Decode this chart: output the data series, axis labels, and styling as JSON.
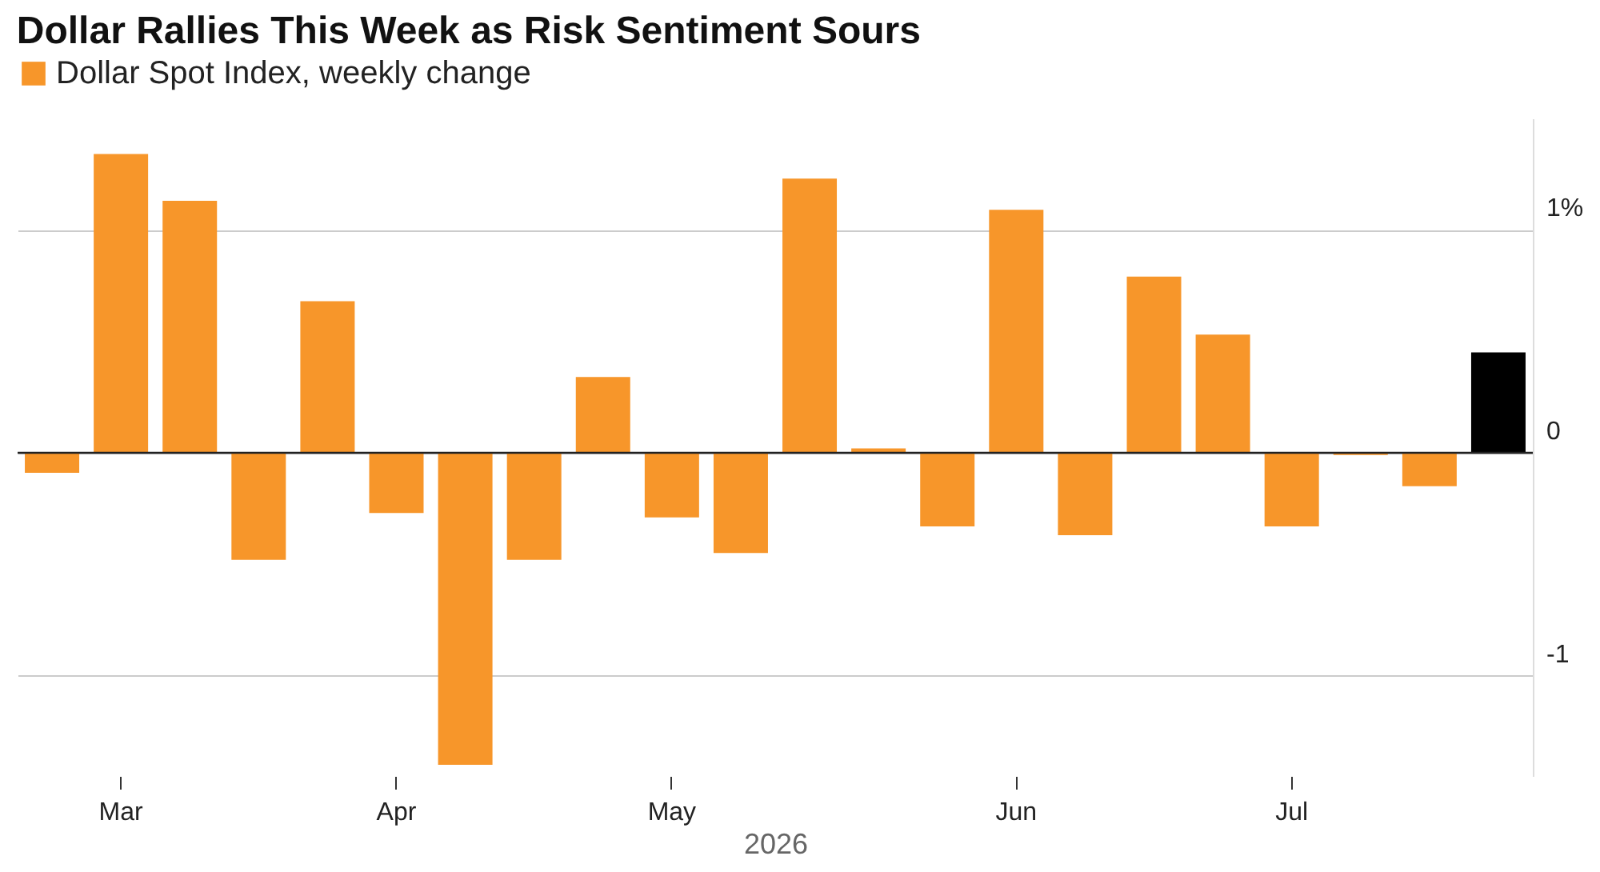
{
  "chart_data": {
    "type": "bar",
    "title": "Dollar Rallies This Week as Risk Sentiment Sours",
    "xlabel": "2026",
    "categories": [
      null,
      "Mar",
      null,
      null,
      null,
      "Apr",
      null,
      null,
      null,
      "May",
      null,
      null,
      null,
      null,
      "Jun",
      null,
      null,
      null,
      "Jul",
      null,
      null,
      null
    ],
    "series": [
      {
        "name": "Dollar Spot Index, weekly change",
        "color": "#f7962a",
        "values": [
          -0.09,
          1.34,
          1.13,
          -0.48,
          0.68,
          -0.27,
          -1.4,
          -0.48,
          0.34,
          -0.29,
          -0.45,
          1.23,
          0.02,
          -0.33,
          1.09,
          -0.37,
          0.79,
          0.53,
          -0.33,
          -0.01,
          -0.15,
          0.45
        ],
        "colors": [
          "#f7962a",
          "#f7962a",
          "#f7962a",
          "#f7962a",
          "#f7962a",
          "#f7962a",
          "#f7962a",
          "#f7962a",
          "#f7962a",
          "#f7962a",
          "#f7962a",
          "#f7962a",
          "#f7962a",
          "#f7962a",
          "#f7962a",
          "#f7962a",
          "#f7962a",
          "#f7962a",
          "#f7962a",
          "#f7962a",
          "#f7962a",
          "#000000"
        ]
      }
    ],
    "ylim": [
      -1.45,
      1.5
    ],
    "yticks": [
      {
        "value": 1,
        "label": "1%"
      },
      0,
      -1
    ],
    "grid": "y",
    "legend": "top left"
  }
}
